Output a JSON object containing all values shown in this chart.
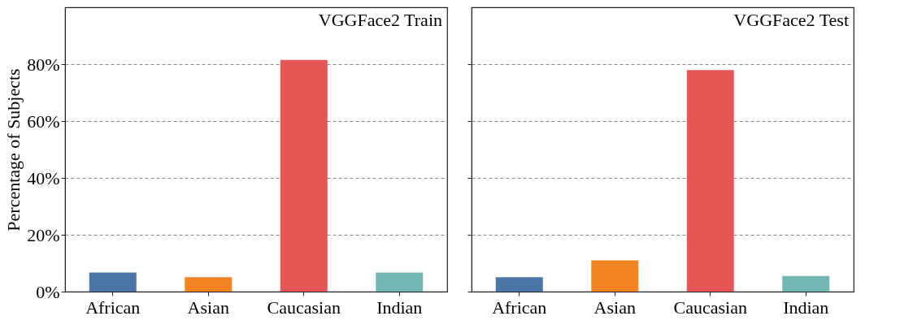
{
  "chart_data": [
    {
      "type": "bar",
      "title": "VGGFace2 Train",
      "ylabel": "Percentage of Subjects",
      "categories": [
        "African",
        "Asian",
        "Caucasian",
        "Indian"
      ],
      "values": [
        6.7,
        5.1,
        81.5,
        6.7
      ],
      "colors": [
        "#4c76a8",
        "#f28522",
        "#e45756",
        "#72b7b2"
      ],
      "ylim": [
        0,
        100
      ],
      "yticks": [
        {
          "value": 0,
          "label": "0%"
        },
        {
          "value": 20,
          "label": "20%"
        },
        {
          "value": 40,
          "label": "40%"
        },
        {
          "value": 60,
          "label": "60%"
        },
        {
          "value": 80,
          "label": "80%"
        }
      ],
      "grid": "y"
    },
    {
      "type": "bar",
      "title": "VGGFace2 Test",
      "categories": [
        "African",
        "Asian",
        "Caucasian",
        "Indian"
      ],
      "values": [
        5.1,
        11.0,
        77.9,
        5.5
      ],
      "colors": [
        "#4c76a8",
        "#f28522",
        "#e45756",
        "#72b7b2"
      ],
      "ylim": [
        0,
        100
      ],
      "yticks": [
        0,
        20,
        40,
        60,
        80
      ],
      "grid": "y",
      "tick_labels": "x"
    }
  ]
}
